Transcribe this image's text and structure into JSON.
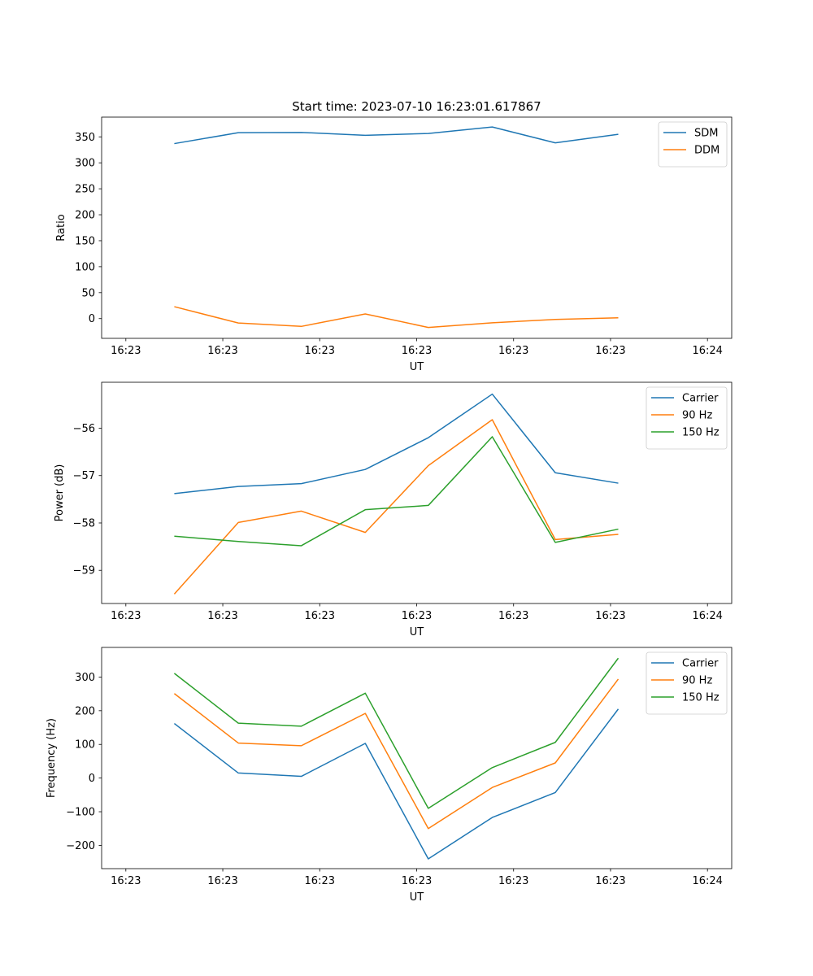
{
  "title": "Start time: 2023-07-10 16:23:01.617867",
  "chart_data": [
    {
      "type": "line",
      "xlabel": "UT",
      "ylabel": "Ratio",
      "x_tick_labels": [
        "16:23",
        "16:23",
        "16:23",
        "16:23",
        "16:23",
        "16:23",
        "16:24"
      ],
      "xlim": [
        -0.25,
        6.25
      ],
      "x_ticks": [
        0,
        1,
        2,
        3,
        4,
        5,
        6
      ],
      "x": [
        0.5,
        1.16,
        1.81,
        2.47,
        3.12,
        3.78,
        4.43,
        5.08
      ],
      "ylim": [
        -38,
        388
      ],
      "y_ticks": [
        0,
        50,
        100,
        150,
        200,
        250,
        300,
        350
      ],
      "legend": "top-right",
      "series": [
        {
          "name": "SDM",
          "color": "#1f77b4",
          "values": [
            337,
            358,
            358.5,
            353,
            356.5,
            369,
            338.5,
            355
          ]
        },
        {
          "name": "DDM",
          "color": "#ff7f0e",
          "values": [
            23,
            -8.5,
            -15,
            9,
            -17,
            -8,
            -1.5,
            1.5
          ]
        }
      ]
    },
    {
      "type": "line",
      "xlabel": "UT",
      "ylabel": "Power (dB)",
      "x_tick_labels": [
        "16:23",
        "16:23",
        "16:23",
        "16:23",
        "16:23",
        "16:23",
        "16:24"
      ],
      "xlim": [
        -0.25,
        6.25
      ],
      "x_ticks": [
        0,
        1,
        2,
        3,
        4,
        5,
        6
      ],
      "x": [
        0.5,
        1.16,
        1.81,
        2.47,
        3.12,
        3.78,
        4.43,
        5.08
      ],
      "ylim": [
        -59.7,
        -55.03
      ],
      "y_ticks": [
        -59,
        -58,
        -57,
        -56
      ],
      "legend": "top-right",
      "series": [
        {
          "name": "Carrier",
          "color": "#1f77b4",
          "values": [
            -57.38,
            -57.23,
            -57.17,
            -56.87,
            -56.2,
            -55.28,
            -56.94,
            -57.16
          ]
        },
        {
          "name": "90 Hz",
          "color": "#ff7f0e",
          "values": [
            -59.5,
            -57.99,
            -57.75,
            -58.2,
            -56.79,
            -55.82,
            -58.35,
            -58.24
          ]
        },
        {
          "name": "150 Hz",
          "color": "#2ca02c",
          "values": [
            -58.28,
            -58.39,
            -58.48,
            -57.72,
            -57.63,
            -56.18,
            -58.41,
            -58.13
          ]
        }
      ]
    },
    {
      "type": "line",
      "xlabel": "UT",
      "ylabel": "Frequency (Hz)",
      "x_tick_labels": [
        "16:23",
        "16:23",
        "16:23",
        "16:23",
        "16:23",
        "16:23",
        "16:24"
      ],
      "xlim": [
        -0.25,
        6.25
      ],
      "x_ticks": [
        0,
        1,
        2,
        3,
        4,
        5,
        6
      ],
      "x": [
        0.5,
        1.16,
        1.81,
        2.47,
        3.12,
        3.78,
        4.43,
        5.08
      ],
      "ylim": [
        -269,
        388
      ],
      "y_ticks": [
        -200,
        -100,
        0,
        100,
        200,
        300
      ],
      "legend": "top-right",
      "series": [
        {
          "name": "Carrier",
          "color": "#1f77b4",
          "values": [
            162,
            15,
            5,
            103,
            -240,
            -117,
            -43,
            205
          ]
        },
        {
          "name": "90 Hz",
          "color": "#ff7f0e",
          "values": [
            251,
            104,
            96,
            192,
            -150,
            -28,
            45,
            294
          ]
        },
        {
          "name": "150 Hz",
          "color": "#2ca02c",
          "values": [
            311,
            163,
            154,
            252,
            -90,
            31,
            106,
            356
          ]
        }
      ]
    }
  ]
}
